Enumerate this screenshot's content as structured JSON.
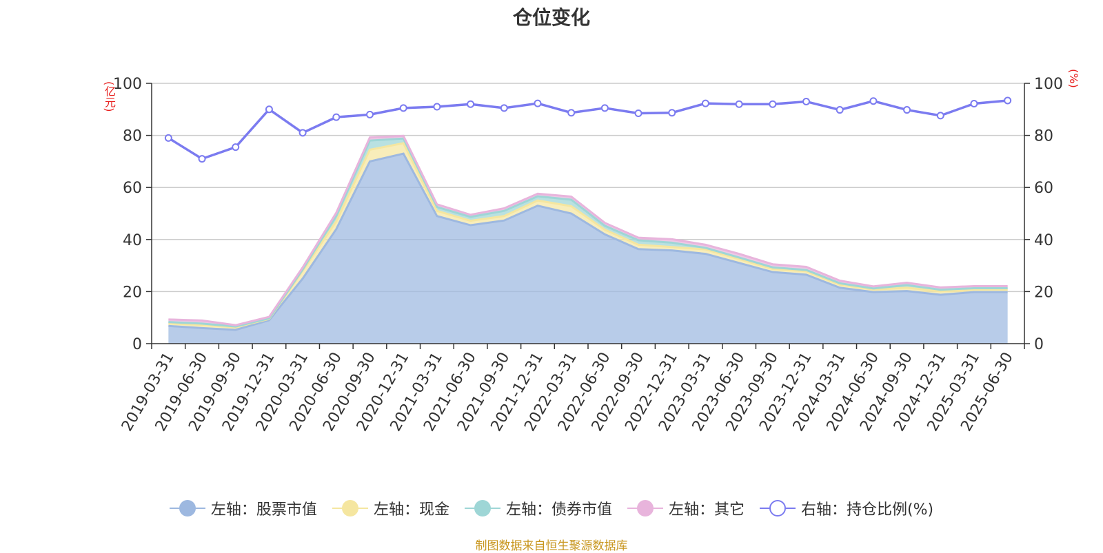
{
  "title": "仓位变化",
  "left_axis_unit": "(亿元)",
  "right_axis_unit": "(%)",
  "source": "制图数据来自恒生聚源数据库",
  "chart_data": {
    "type": "area",
    "categories": [
      "2019-03-31",
      "2019-06-30",
      "2019-09-30",
      "2019-12-31",
      "2020-03-31",
      "2020-06-30",
      "2020-09-30",
      "2020-12-31",
      "2021-03-31",
      "2021-06-30",
      "2021-09-30",
      "2021-12-31",
      "2022-03-31",
      "2022-06-30",
      "2022-09-30",
      "2022-12-31",
      "2023-03-31",
      "2023-06-30",
      "2023-09-30",
      "2023-12-31",
      "2024-03-31",
      "2024-06-30",
      "2024-09-30",
      "2024-12-31",
      "2025-03-31",
      "2025-06-30"
    ],
    "ylim_left": [
      0,
      100
    ],
    "ylim_right": [
      0,
      100
    ],
    "yticks": [
      0,
      20,
      40,
      60,
      80,
      100
    ],
    "grid": true,
    "legend_position": "bottom",
    "series": [
      {
        "name": "左轴：股票市值",
        "axis": "left",
        "stack": true,
        "color": "#9db8e0",
        "values": [
          6.8,
          6.0,
          5.3,
          9.0,
          25.0,
          44.0,
          70.0,
          73.0,
          49.0,
          45.5,
          47.3,
          53.0,
          50.0,
          42.0,
          36.3,
          35.8,
          34.5,
          31.0,
          27.5,
          26.5,
          21.5,
          19.8,
          20.2,
          18.8,
          19.8,
          19.8
        ]
      },
      {
        "name": "左轴：现金",
        "axis": "left",
        "stack": true,
        "color": "#f5e6a0",
        "values": [
          1.0,
          1.2,
          1.0,
          0.5,
          3.0,
          3.0,
          4.5,
          4.0,
          2.0,
          1.7,
          1.7,
          2.0,
          2.8,
          1.8,
          1.7,
          1.3,
          1.7,
          1.5,
          1.2,
          1.3,
          1.2,
          1.0,
          1.3,
          1.3,
          1.0,
          1.0
        ]
      },
      {
        "name": "左轴：债券市值",
        "axis": "left",
        "stack": true,
        "color": "#9ed6d6",
        "values": [
          0.5,
          0.5,
          0.3,
          0.2,
          0.5,
          2.0,
          3.5,
          1.8,
          1.5,
          1.5,
          2.0,
          1.6,
          2.5,
          1.5,
          1.7,
          1.7,
          0.6,
          0.6,
          0.6,
          0.5,
          0.5,
          0.4,
          1.0,
          0.6,
          0.5,
          0.5
        ]
      },
      {
        "name": "左轴：其它",
        "axis": "left",
        "stack": true,
        "color": "#e8b4dc",
        "values": [
          1.0,
          1.2,
          0.5,
          0.6,
          0.8,
          1.3,
          1.2,
          1.0,
          1.0,
          0.8,
          1.0,
          1.0,
          1.2,
          1.1,
          1.0,
          1.3,
          1.2,
          1.4,
          1.2,
          1.2,
          1.0,
          0.8,
          0.9,
          0.9,
          0.8,
          0.8
        ]
      },
      {
        "name": "右轴：持仓比例(%)",
        "axis": "right",
        "stack": false,
        "color": "#7b7bf0",
        "values": [
          79,
          71,
          75.5,
          90,
          81,
          87,
          88,
          90.5,
          91,
          92,
          90.5,
          92.3,
          88.7,
          90.5,
          88.5,
          88.7,
          92.3,
          92,
          92,
          93,
          89.8,
          93.2,
          89.8,
          87.6,
          92.2,
          93.4
        ]
      }
    ]
  }
}
